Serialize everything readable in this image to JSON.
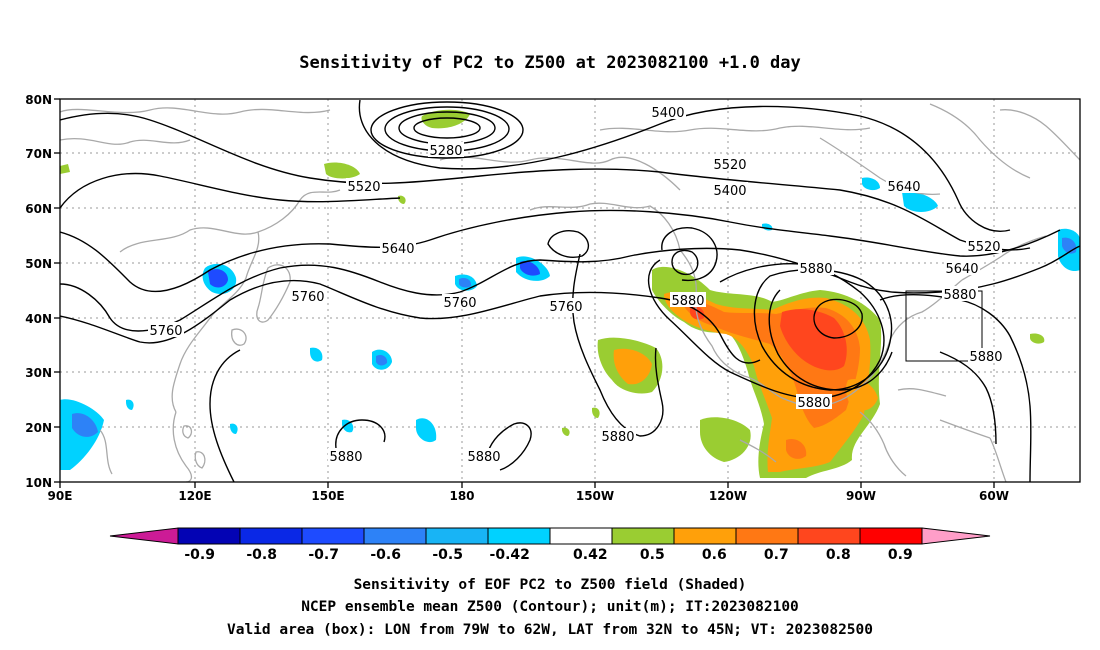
{
  "title": "Sensitivity of PC2 to Z500 at 2023082100 +1.0 day",
  "map": {
    "lon_labels": [
      "90E",
      "120E",
      "150E",
      "180",
      "150W",
      "120W",
      "90W",
      "60W"
    ],
    "lat_labels": [
      "80N",
      "70N",
      "60N",
      "50N",
      "40N",
      "30N",
      "20N",
      "10N"
    ],
    "valid_box": {
      "lon_west": "79W",
      "lon_east": "62W",
      "lat_south": "32N",
      "lat_north": "45N"
    },
    "contour_labels": [
      "5400",
      "5280",
      "5520",
      "5520",
      "5640",
      "5400",
      "5640",
      "5520",
      "5640",
      "5880",
      "5760",
      "5760",
      "5880",
      "5880",
      "5760",
      "5760",
      "5880",
      "5880",
      "5880",
      "5880",
      "5880"
    ]
  },
  "colorbar": {
    "ticks": [
      "-0.9",
      "-0.8",
      "-0.7",
      "-0.6",
      "-0.5",
      "-0.42",
      "0.42",
      "0.5",
      "0.6",
      "0.7",
      "0.8",
      "0.9"
    ],
    "colors": {
      "lt_min": "#cc1b96",
      "c1": "#0303b4",
      "c2": "#0a28e6",
      "c3": "#1e4bff",
      "c4": "#2d82f7",
      "c5": "#18b4f5",
      "c6": "#00d2ff",
      "white": "#ffffff",
      "green": "#9acd32",
      "orange1": "#ffa00a",
      "orange2": "#ff7814",
      "red1": "#ff461e",
      "red2": "#ff0000",
      "gt_max": "#ff9ec8"
    }
  },
  "captions": [
    "Sensitivity of EOF PC2 to Z500 field (Shaded)",
    "NCEP ensemble mean Z500 (Contour); unit(m); IT:2023082100",
    "Valid area (box): LON from 79W to 62W, LAT from 32N to 45N; VT: 2023082500"
  ]
}
